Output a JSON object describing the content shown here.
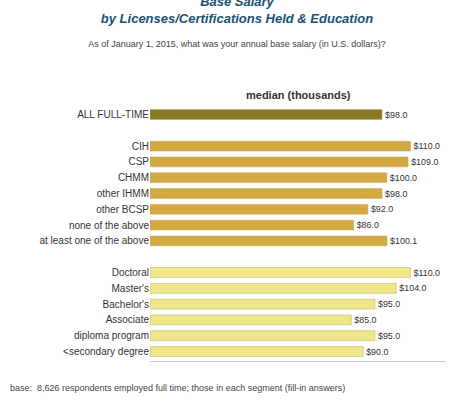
{
  "chart_data": {
    "type": "bar",
    "orientation": "horizontal",
    "title": "Base Salary\nby Licenses/Certifications Held & Education",
    "subtitle": "As of January 1, 2015, what was your annual base salary (in U.S. dollars)?",
    "xlabel": "median (thousands)",
    "annotations": [
      "base:  8,626 respondents employed full time; those in each segment (fill-in answers)"
    ],
    "categories": [
      "ALL FULL-TIME",
      null,
      "CIH",
      "CSP",
      "CHMM",
      "other IHMM",
      "other BCSP",
      "none of the above",
      "at least one of the above",
      null,
      "Doctoral",
      "Master's",
      "Bachelor's",
      "Associate",
      "diploma program",
      "<secondary degree"
    ],
    "values": [
      98.0,
      null,
      110.0,
      109.0,
      100.0,
      98.0,
      92.0,
      86.0,
      100.1,
      null,
      110.0,
      104.0,
      95.0,
      85.0,
      95.0,
      90.0
    ],
    "value_labels": [
      "$98.0",
      null,
      "$110.0",
      "$109.0",
      "$100.0",
      "$98.0",
      "$92.0",
      "$86.0",
      "$100.1",
      null,
      "$110.0",
      "$104.0",
      "$95.0",
      "$85.0",
      "$95.0",
      "$90.0"
    ],
    "colors": [
      "#8b7826",
      null,
      "#d4a843",
      "#d4a843",
      "#d4a843",
      "#d4a843",
      "#d4a843",
      "#d4a843",
      "#d4a843",
      null,
      "#f0e888",
      "#f0e888",
      "#f0e888",
      "#f0e888",
      "#f0e888",
      "#f0e888"
    ],
    "xlim": [
      0,
      125
    ],
    "data_labels": true,
    "tick_labels": "y",
    "grid": false
  }
}
